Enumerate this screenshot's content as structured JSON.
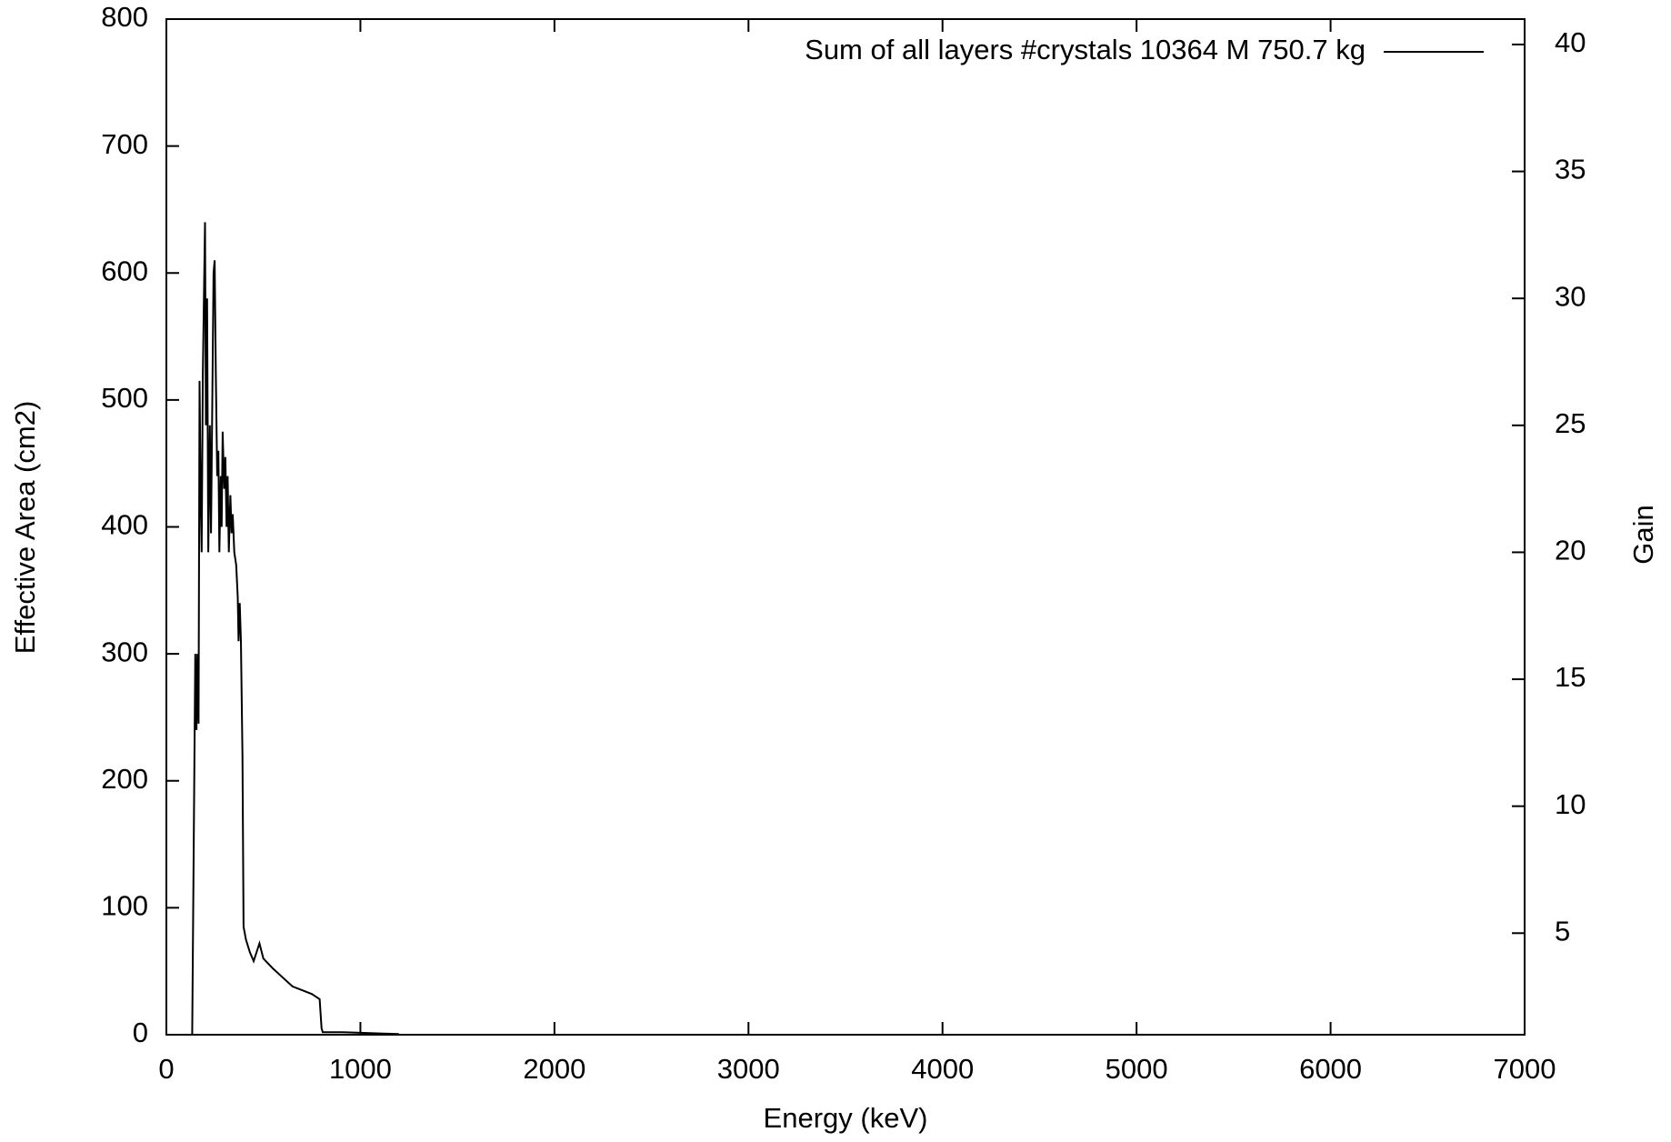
{
  "chart_data": {
    "type": "line",
    "xlabel": "Energy (keV)",
    "ylabel": "Effective Area (cm2)",
    "y2label": "Gain",
    "xlim": [
      0,
      7000
    ],
    "xticks": [
      0,
      1000,
      2000,
      3000,
      4000,
      5000,
      6000,
      7000
    ],
    "ylim": [
      0,
      800
    ],
    "yticks": [
      0,
      100,
      200,
      300,
      400,
      500,
      600,
      700,
      800
    ],
    "y2lim": [
      1,
      41
    ],
    "y2ticks": [
      5,
      10,
      15,
      20,
      25,
      30,
      35,
      40
    ],
    "legend": "top-right",
    "series": [
      {
        "name": "Sum of all layers  #crystals 10364  M 750.7 kg",
        "color": "#000000",
        "x": [
          133,
          149,
          155,
          160,
          166,
          171,
          177,
          182,
          188,
          199,
          204,
          210,
          216,
          224,
          230,
          243,
          249,
          255,
          262,
          268,
          273,
          280,
          285,
          290,
          298,
          304,
          310,
          316,
          322,
          330,
          336,
          342,
          350,
          360,
          368,
          372,
          378,
          384,
          392,
          398,
          410,
          430,
          450,
          480,
          500,
          550,
          600,
          650,
          700,
          750,
          790,
          800,
          806,
          900,
          1000,
          1100,
          1198
        ],
        "values": [
          0,
          300,
          240,
          300,
          245,
          515,
          420,
          380,
          520,
          640,
          480,
          580,
          380,
          480,
          395,
          600,
          610,
          520,
          440,
          460,
          380,
          440,
          400,
          475,
          430,
          455,
          400,
          440,
          380,
          425,
          395,
          410,
          380,
          370,
          345,
          310,
          340,
          310,
          220,
          85,
          75,
          65,
          58,
          72,
          60,
          52,
          45,
          38,
          35,
          32,
          28,
          5,
          2,
          2,
          1.5,
          1,
          0.5
        ]
      }
    ]
  }
}
